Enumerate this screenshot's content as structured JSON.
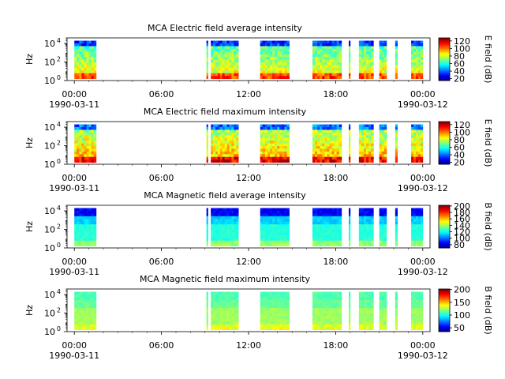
{
  "figure": {
    "background": "#ffffff"
  },
  "chart_data": [
    {
      "type": "heatmap",
      "title": "MCA  Electric field average intensity",
      "ylabel": "Hz",
      "y_scale": "log",
      "ylim": [
        1,
        40000
      ],
      "y_ticks": [
        {
          "base": "10",
          "exp": "0"
        },
        {
          "base": "10",
          "exp": "2"
        },
        {
          "base": "10",
          "exp": "4"
        }
      ],
      "x_ticks": [
        "00:00",
        "06:00",
        "12:00",
        "18:00",
        "00:00"
      ],
      "x_dates": [
        "1990-03-11",
        "",
        "",
        "",
        "1990-03-12"
      ],
      "xlim_hours": [
        -0.5,
        24.5
      ],
      "colorbar": {
        "label": "E field (dB)",
        "range": [
          15,
          128
        ],
        "ticks": [
          "20",
          "40",
          "60",
          "80",
          "100",
          "120"
        ]
      },
      "data_intervals_hours": [
        [
          0.0,
          1.5
        ],
        [
          9.1,
          9.2
        ],
        [
          9.4,
          11.3
        ],
        [
          12.8,
          14.8
        ],
        [
          16.4,
          18.4
        ],
        [
          18.9,
          19.0
        ],
        [
          19.6,
          20.6
        ],
        [
          21.0,
          21.5
        ],
        [
          22.1,
          22.25
        ],
        [
          23.2,
          24.0
        ]
      ],
      "intensity_level": "mid"
    },
    {
      "type": "heatmap",
      "title": "MCA  Electric field maximum intensity",
      "ylabel": "Hz",
      "y_scale": "log",
      "ylim": [
        1,
        40000
      ],
      "y_ticks": [
        {
          "base": "10",
          "exp": "0"
        },
        {
          "base": "10",
          "exp": "2"
        },
        {
          "base": "10",
          "exp": "4"
        }
      ],
      "x_ticks": [
        "00:00",
        "06:00",
        "12:00",
        "18:00",
        "00:00"
      ],
      "x_dates": [
        "1990-03-11",
        "",
        "",
        "",
        "1990-03-12"
      ],
      "xlim_hours": [
        -0.5,
        24.5
      ],
      "colorbar": {
        "label": "E field (dB)",
        "range": [
          15,
          128
        ],
        "ticks": [
          "20",
          "40",
          "60",
          "80",
          "100",
          "120"
        ]
      },
      "data_intervals_hours": [
        [
          0.0,
          1.5
        ],
        [
          9.1,
          9.2
        ],
        [
          9.4,
          11.3
        ],
        [
          12.8,
          14.8
        ],
        [
          16.4,
          18.4
        ],
        [
          18.9,
          19.0
        ],
        [
          19.6,
          20.6
        ],
        [
          21.0,
          21.5
        ],
        [
          22.1,
          22.25
        ],
        [
          23.2,
          24.0
        ]
      ],
      "intensity_level": "mid-high"
    },
    {
      "type": "heatmap",
      "title": "MCA  Magnetic field average intensity",
      "ylabel": "Hz",
      "y_scale": "log",
      "ylim": [
        1,
        40000
      ],
      "y_ticks": [
        {
          "base": "10",
          "exp": "0"
        },
        {
          "base": "10",
          "exp": "2"
        },
        {
          "base": "10",
          "exp": "4"
        }
      ],
      "x_ticks": [
        "00:00",
        "06:00",
        "12:00",
        "18:00",
        "00:00"
      ],
      "x_dates": [
        "1990-03-11",
        "",
        "",
        "",
        "1990-03-12"
      ],
      "xlim_hours": [
        -0.5,
        24.5
      ],
      "colorbar": {
        "label": "B field (dB)",
        "range": [
          70,
          202
        ],
        "ticks": [
          "80",
          "100",
          "120",
          "140",
          "160",
          "180",
          "200"
        ]
      },
      "data_intervals_hours": [
        [
          0.0,
          1.5
        ],
        [
          9.1,
          9.2
        ],
        [
          9.4,
          11.3
        ],
        [
          12.8,
          14.8
        ],
        [
          16.4,
          18.4
        ],
        [
          18.9,
          19.0
        ],
        [
          19.6,
          20.6
        ],
        [
          21.0,
          21.5
        ],
        [
          22.1,
          22.25
        ],
        [
          23.2,
          24.0
        ]
      ],
      "intensity_level": "banded"
    },
    {
      "type": "heatmap",
      "title": "MCA  Magnetic field maximum intensity",
      "ylabel": "Hz",
      "y_scale": "log",
      "ylim": [
        1,
        40000
      ],
      "y_ticks": [
        {
          "base": "10",
          "exp": "0"
        },
        {
          "base": "10",
          "exp": "2"
        },
        {
          "base": "10",
          "exp": "4"
        }
      ],
      "x_ticks": [
        "00:00",
        "06:00",
        "12:00",
        "18:00",
        "00:00"
      ],
      "x_dates": [
        "1990-03-11",
        "",
        "",
        "",
        "1990-03-12"
      ],
      "xlim_hours": [
        -0.5,
        24.5
      ],
      "colorbar": {
        "label": "B field (dB)",
        "range": [
          35,
          202
        ],
        "ticks": [
          "50",
          "100",
          "150",
          "200"
        ]
      },
      "data_intervals_hours": [
        [
          0.0,
          1.5
        ],
        [
          9.1,
          9.2
        ],
        [
          9.4,
          11.3
        ],
        [
          12.8,
          14.8
        ],
        [
          16.4,
          18.4
        ],
        [
          18.9,
          19.0
        ],
        [
          19.6,
          20.6
        ],
        [
          21.0,
          21.5
        ],
        [
          22.1,
          22.25
        ],
        [
          23.2,
          24.0
        ]
      ],
      "intensity_level": "banded-high"
    }
  ]
}
